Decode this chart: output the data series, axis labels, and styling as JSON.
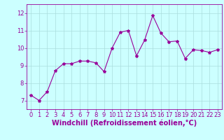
{
  "x": [
    0,
    1,
    2,
    3,
    4,
    5,
    6,
    7,
    8,
    9,
    10,
    11,
    12,
    13,
    14,
    15,
    16,
    17,
    18,
    19,
    20,
    21,
    22,
    23
  ],
  "y": [
    7.3,
    7.0,
    7.5,
    8.7,
    9.1,
    9.1,
    9.25,
    9.25,
    9.15,
    8.65,
    10.0,
    10.9,
    11.0,
    9.55,
    10.45,
    11.85,
    10.85,
    10.35,
    10.4,
    9.4,
    9.9,
    9.85,
    9.75,
    9.9
  ],
  "line_color": "#990099",
  "marker": "*",
  "marker_size": 3,
  "bg_color": "#ccffff",
  "grid_color": "#aadddd",
  "xlabel": "Windchill (Refroidissement éolien,°C)",
  "xlabel_color": "#990099",
  "tick_color": "#990099",
  "ylim": [
    6.5,
    12.5
  ],
  "xlim": [
    -0.5,
    23.5
  ],
  "yticks": [
    7,
    8,
    9,
    10,
    11,
    12
  ],
  "xticks": [
    0,
    1,
    2,
    3,
    4,
    5,
    6,
    7,
    8,
    9,
    10,
    11,
    12,
    13,
    14,
    15,
    16,
    17,
    18,
    19,
    20,
    21,
    22,
    23
  ],
  "font_size": 6,
  "xlabel_font_size": 7
}
